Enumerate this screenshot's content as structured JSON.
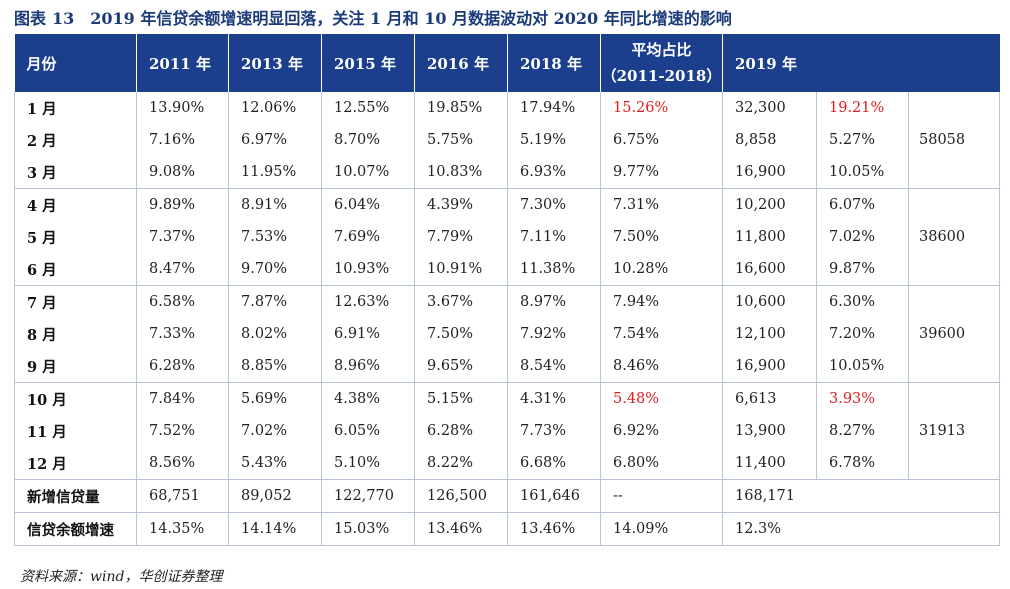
{
  "title": {
    "prefix": "图表",
    "number": "13",
    "text": "2019 年信贷余额增速明显回落，关注 1 月和 10 月数据波动对 2020 年同比增速的影响"
  },
  "header": {
    "month": "月份",
    "y2011": "2011 年",
    "y2013": "2013 年",
    "y2015": "2015 年",
    "y2016": "2016 年",
    "y2018": "2018 年",
    "avg_line1": "平均占比",
    "avg_line2": "（2011-2018）",
    "y2019": "2019 年"
  },
  "rows": [
    {
      "m": "1 月",
      "v": [
        "13.90%",
        "12.06%",
        "12.55%",
        "19.85%",
        "17.94%",
        "15.26%",
        "32,300",
        "19.21%"
      ]
    },
    {
      "m": "2 月",
      "v": [
        "7.16%",
        "6.97%",
        "8.70%",
        "5.75%",
        "5.19%",
        "6.75%",
        "8,858",
        "5.27%"
      ]
    },
    {
      "m": "3 月",
      "v": [
        "9.08%",
        "11.95%",
        "10.07%",
        "10.83%",
        "6.93%",
        "9.77%",
        "16,900",
        "10.05%"
      ]
    },
    {
      "m": "4 月",
      "v": [
        "9.89%",
        "8.91%",
        "6.04%",
        "4.39%",
        "7.30%",
        "7.31%",
        "10,200",
        "6.07%"
      ]
    },
    {
      "m": "5 月",
      "v": [
        "7.37%",
        "7.53%",
        "7.69%",
        "7.79%",
        "7.11%",
        "7.50%",
        "11,800",
        "7.02%"
      ]
    },
    {
      "m": "6 月",
      "v": [
        "8.47%",
        "9.70%",
        "10.93%",
        "10.91%",
        "11.38%",
        "10.28%",
        "16,600",
        "9.87%"
      ]
    },
    {
      "m": "7 月",
      "v": [
        "6.58%",
        "7.87%",
        "12.63%",
        "3.67%",
        "8.97%",
        "7.94%",
        "10,600",
        "6.30%"
      ]
    },
    {
      "m": "8 月",
      "v": [
        "7.33%",
        "8.02%",
        "6.91%",
        "7.50%",
        "7.92%",
        "7.54%",
        "12,100",
        "7.20%"
      ]
    },
    {
      "m": "9 月",
      "v": [
        "6.28%",
        "8.85%",
        "8.96%",
        "9.65%",
        "8.54%",
        "8.46%",
        "16,900",
        "10.05%"
      ]
    },
    {
      "m": "10 月",
      "v": [
        "7.84%",
        "5.69%",
        "4.38%",
        "5.15%",
        "4.31%",
        "5.48%",
        "6,613",
        "3.93%"
      ]
    },
    {
      "m": "11 月",
      "v": [
        "7.52%",
        "7.02%",
        "6.05%",
        "6.28%",
        "7.73%",
        "6.92%",
        "13,900",
        "8.27%"
      ]
    },
    {
      "m": "12 月",
      "v": [
        "8.56%",
        "5.43%",
        "5.10%",
        "8.22%",
        "6.68%",
        "6.80%",
        "11,400",
        "6.78%"
      ]
    }
  ],
  "quarters": [
    "58058",
    "38600",
    "39600",
    "31913"
  ],
  "summary": [
    {
      "label": "新增信贷量",
      "v": [
        "68,751",
        "89,052",
        "122,770",
        "126,500",
        "161,646",
        "--",
        "168,171"
      ]
    },
    {
      "label": "信贷余额增速",
      "v": [
        "14.35%",
        "14.14%",
        "15.03%",
        "13.46%",
        "13.46%",
        "14.09%",
        "12.3%"
      ]
    }
  ],
  "highlight_color": "#e02020",
  "header_bg": "#1b3f8c",
  "source": "资料来源：wind，华创证券整理"
}
